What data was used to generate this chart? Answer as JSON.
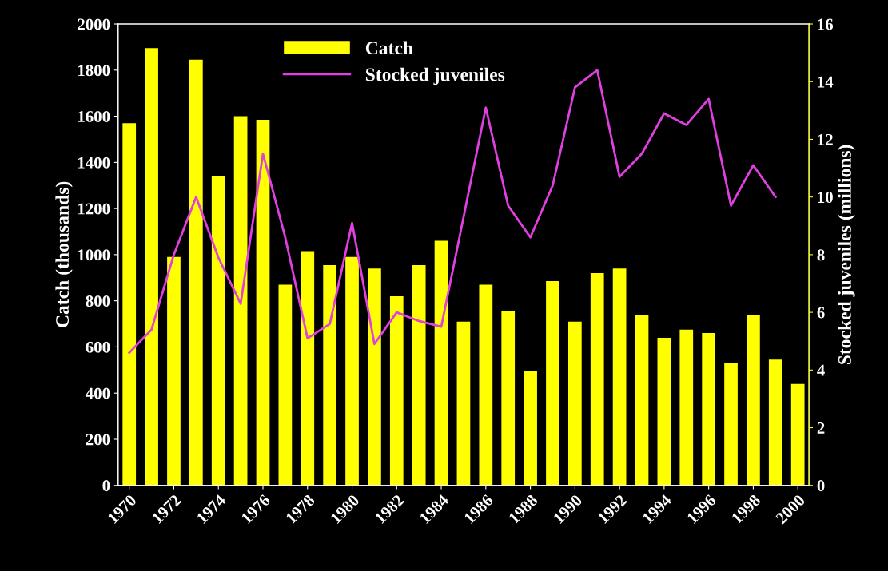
{
  "chart_data": {
    "type": "bar",
    "ylabel": "Catch (thousands)",
    "y2label": "Stocked juveniles (millions)",
    "x": [
      1970,
      1971,
      1972,
      1973,
      1974,
      1975,
      1976,
      1977,
      1978,
      1979,
      1980,
      1981,
      1982,
      1983,
      1984,
      1985,
      1986,
      1987,
      1988,
      1989,
      1990,
      1991,
      1992,
      1993,
      1994,
      1995,
      1996,
      1997,
      1998,
      1999,
      2000
    ],
    "xlim": [
      1969.5,
      2000.5
    ],
    "xticks": [
      1970,
      1972,
      1974,
      1976,
      1978,
      1980,
      1982,
      1984,
      1986,
      1988,
      1990,
      1992,
      1994,
      1996,
      1998,
      2000
    ],
    "ylim": [
      0,
      2000
    ],
    "yticks": [
      0,
      200,
      400,
      600,
      800,
      1000,
      1200,
      1400,
      1600,
      1800,
      2000
    ],
    "y2lim": [
      0,
      16
    ],
    "y2ticks": [
      0,
      2,
      4,
      6,
      8,
      10,
      12,
      14,
      16
    ],
    "series": [
      {
        "name": "Catch",
        "color": "#ffff00",
        "values": [
          1570,
          1895,
          990,
          1845,
          1340,
          1600,
          1585,
          870,
          1015,
          955,
          990,
          940,
          820,
          955,
          1060,
          710,
          870,
          755,
          495,
          885,
          710,
          920,
          940,
          740,
          640,
          675,
          660,
          530,
          740,
          545,
          440
        ]
      },
      {
        "name": "Stocked juveniles",
        "type": "line",
        "axis": "y2",
        "color": "#e040e0",
        "x": [
          1970,
          1971,
          1972,
          1973,
          1974,
          1975,
          1976,
          1977,
          1978,
          1979,
          1980,
          1981,
          1982,
          1983,
          1984,
          1985,
          1986,
          1987,
          1988,
          1989,
          1990,
          1991,
          1992,
          1993,
          1994,
          1995,
          1996,
          1997,
          1998,
          1999
        ],
        "values": [
          4.6,
          5.4,
          8.0,
          10.0,
          7.9,
          6.3,
          11.5,
          8.6,
          5.1,
          5.6,
          9.1,
          4.9,
          6.0,
          5.7,
          5.5,
          9.3,
          13.1,
          9.7,
          8.6,
          10.4,
          13.8,
          14.4,
          10.7,
          11.5,
          12.9,
          12.5,
          13.4,
          9.7,
          11.1,
          10.0
        ]
      }
    ],
    "legend": "top",
    "grid": false
  }
}
